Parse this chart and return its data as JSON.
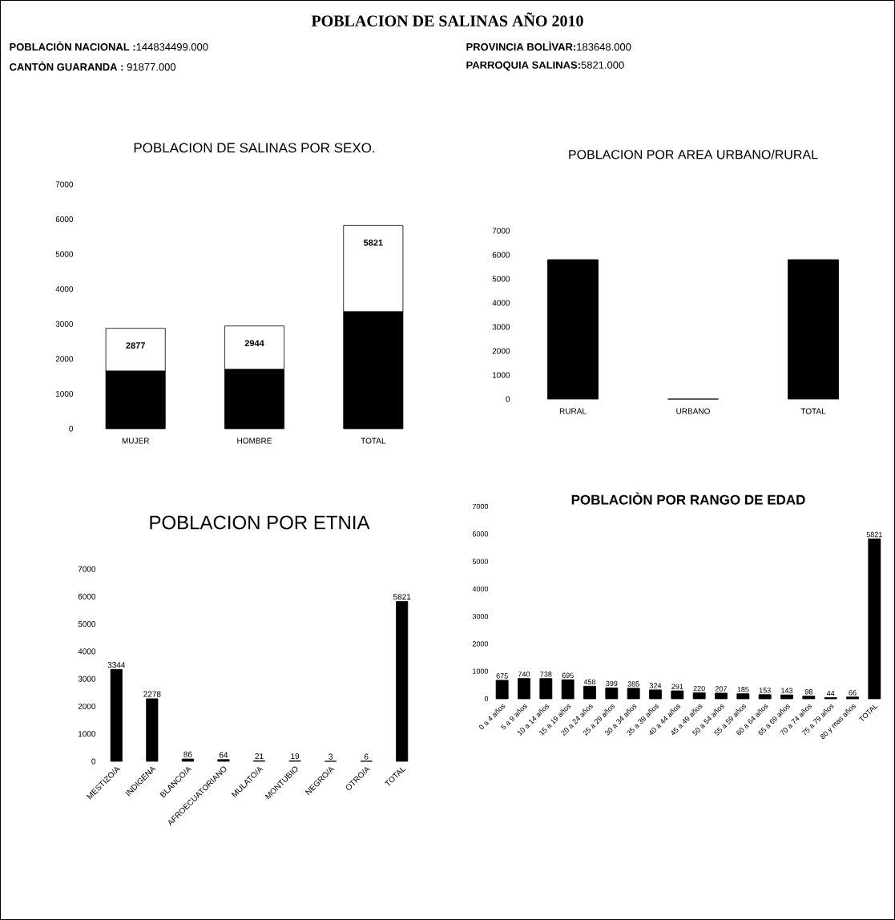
{
  "chart_data": [
    {
      "type": "other",
      "title": "POBLACION DE SALINAS AÑO 2010",
      "annotations": [
        "**POBLACIÒN NACIONAL :**144834499.000",
        "**CANTÒN GUARANDA :** 91877.000",
        "**PROVINCIA BOLÌVAR:**183648.000",
        "**PARROQUIA SALINAS:**5821.000"
      ]
    },
    {
      "type": "bar",
      "title": "POBLACION DE SALINAS POR SEXO.",
      "categories": [
        "MUJER",
        "HOMBRE",
        "TOTAL"
      ],
      "stacked": true,
      "series": [
        {
          "color": "#000000",
          "values": [
            1650,
            1700,
            3350
          ]
        },
        {
          "color": "#ffffff",
          "values": [
            1227,
            1244,
            2471
          ]
        }
      ],
      "totals": [
        "2877",
        "2944",
        "5821"
      ],
      "ylim": [
        0,
        7000
      ],
      "yticks": [
        0,
        1000,
        2000,
        3000,
        4000,
        5000,
        6000,
        7000
      ]
    },
    {
      "type": "bar",
      "title": "POBLACION POR AREA URBANO/RURAL",
      "categories": [
        "RURAL",
        "URBANO",
        "TOTAL"
      ],
      "values": [
        5800,
        0,
        5800
      ],
      "color": "#000000",
      "ylim": [
        0,
        7000
      ],
      "yticks": [
        0,
        1000,
        2000,
        3000,
        4000,
        5000,
        6000,
        7000
      ]
    },
    {
      "type": "bar",
      "title": "POBLACION POR ETNIA",
      "categories": [
        "MESTIZO/A",
        "INDIGENA",
        "BLANCO/A",
        "AFROECUATORIANO",
        "MULATO/A",
        "MONTUBIO",
        "NEGRO/A",
        "OTRO/A",
        "TOTAL"
      ],
      "values": [
        3344,
        2278,
        86,
        64,
        21,
        19,
        3,
        6,
        5821
      ],
      "color": "#000000",
      "data_labels": true,
      "ylim": [
        0,
        7000
      ],
      "yticks": [
        0,
        1000,
        2000,
        3000,
        4000,
        5000,
        6000,
        7000
      ]
    },
    {
      "type": "bar",
      "title": "POBLACIÒN POR RANGO DE EDAD",
      "categories": [
        "0 a 4 años",
        "5 a 9 años",
        "10 a 14  años",
        "15 a 19 años",
        "20 a 24 años",
        "25 a 29 años",
        "30 a 34 años",
        "35 a 39 años",
        "40 a 44 años",
        "45 a 49 años",
        "50 a 54 años",
        "55 a 59 años",
        "60 a 64 años",
        "65 a 69 años",
        "70 a 74 años",
        "75 a 79 años",
        "80 y mas años",
        "TOTAL"
      ],
      "values": [
        675,
        740,
        738,
        695,
        458,
        399,
        385,
        324,
        291,
        220,
        207,
        185,
        153,
        143,
        98,
        44,
        66,
        5821
      ],
      "color": "#000000",
      "data_labels": true,
      "ylim": [
        0,
        7000
      ],
      "yticks": [
        0,
        1000,
        2000,
        3000,
        4000,
        5000,
        6000,
        7000
      ]
    }
  ]
}
